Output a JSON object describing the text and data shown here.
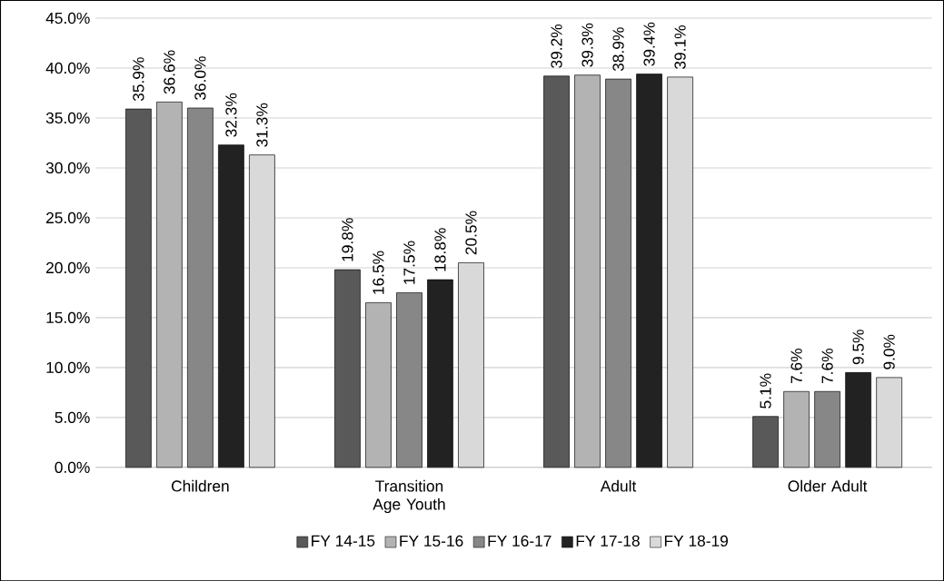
{
  "chart_data": {
    "type": "bar",
    "categories": [
      "Children",
      "Transition Age Youth",
      "Adult",
      "Older Adult"
    ],
    "series": [
      {
        "name": "FY 14-15",
        "color": "#595959",
        "values": [
          35.9,
          19.8,
          39.2,
          5.1
        ],
        "value_labels": [
          "35.9%",
          "19.8%",
          "39.2%",
          "5.1%"
        ]
      },
      {
        "name": "FY 15-16",
        "color": "#b3b3b3",
        "values": [
          36.6,
          16.5,
          39.3,
          7.6
        ],
        "value_labels": [
          "36.6%",
          "16.5%",
          "39.3%",
          "7.6%"
        ]
      },
      {
        "name": "FY 16-17",
        "color": "#878787",
        "values": [
          36.0,
          17.5,
          38.9,
          7.6
        ],
        "value_labels": [
          "36.0%",
          "17.5%",
          "38.9%",
          "7.6%"
        ]
      },
      {
        "name": "FY 17-18",
        "color": "#222222",
        "values": [
          32.3,
          18.8,
          39.4,
          9.5
        ],
        "value_labels": [
          "32.3%",
          "18.8%",
          "39.4%",
          "9.5%"
        ]
      },
      {
        "name": "FY 18-19",
        "color": "#d9d9d9",
        "values": [
          31.3,
          20.5,
          39.1,
          9.0
        ],
        "value_labels": [
          "31.3%",
          "20.5%",
          "39.1%",
          "9.0%"
        ]
      }
    ],
    "ylim": [
      0,
      45
    ],
    "yticks": [
      {
        "value": 0,
        "label": "0.0%"
      },
      {
        "value": 5,
        "label": "5.0%"
      },
      {
        "value": 10,
        "label": "10.0%"
      },
      {
        "value": 15,
        "label": "15.0%"
      },
      {
        "value": 20,
        "label": "20.0%"
      },
      {
        "value": 25,
        "label": "25.0%"
      },
      {
        "value": 30,
        "label": "30.0%"
      },
      {
        "value": 35,
        "label": "35.0%"
      },
      {
        "value": 40,
        "label": "40.0%"
      },
      {
        "value": 45,
        "label": "45.0%"
      }
    ],
    "grid": "y",
    "legend": "bottom"
  }
}
